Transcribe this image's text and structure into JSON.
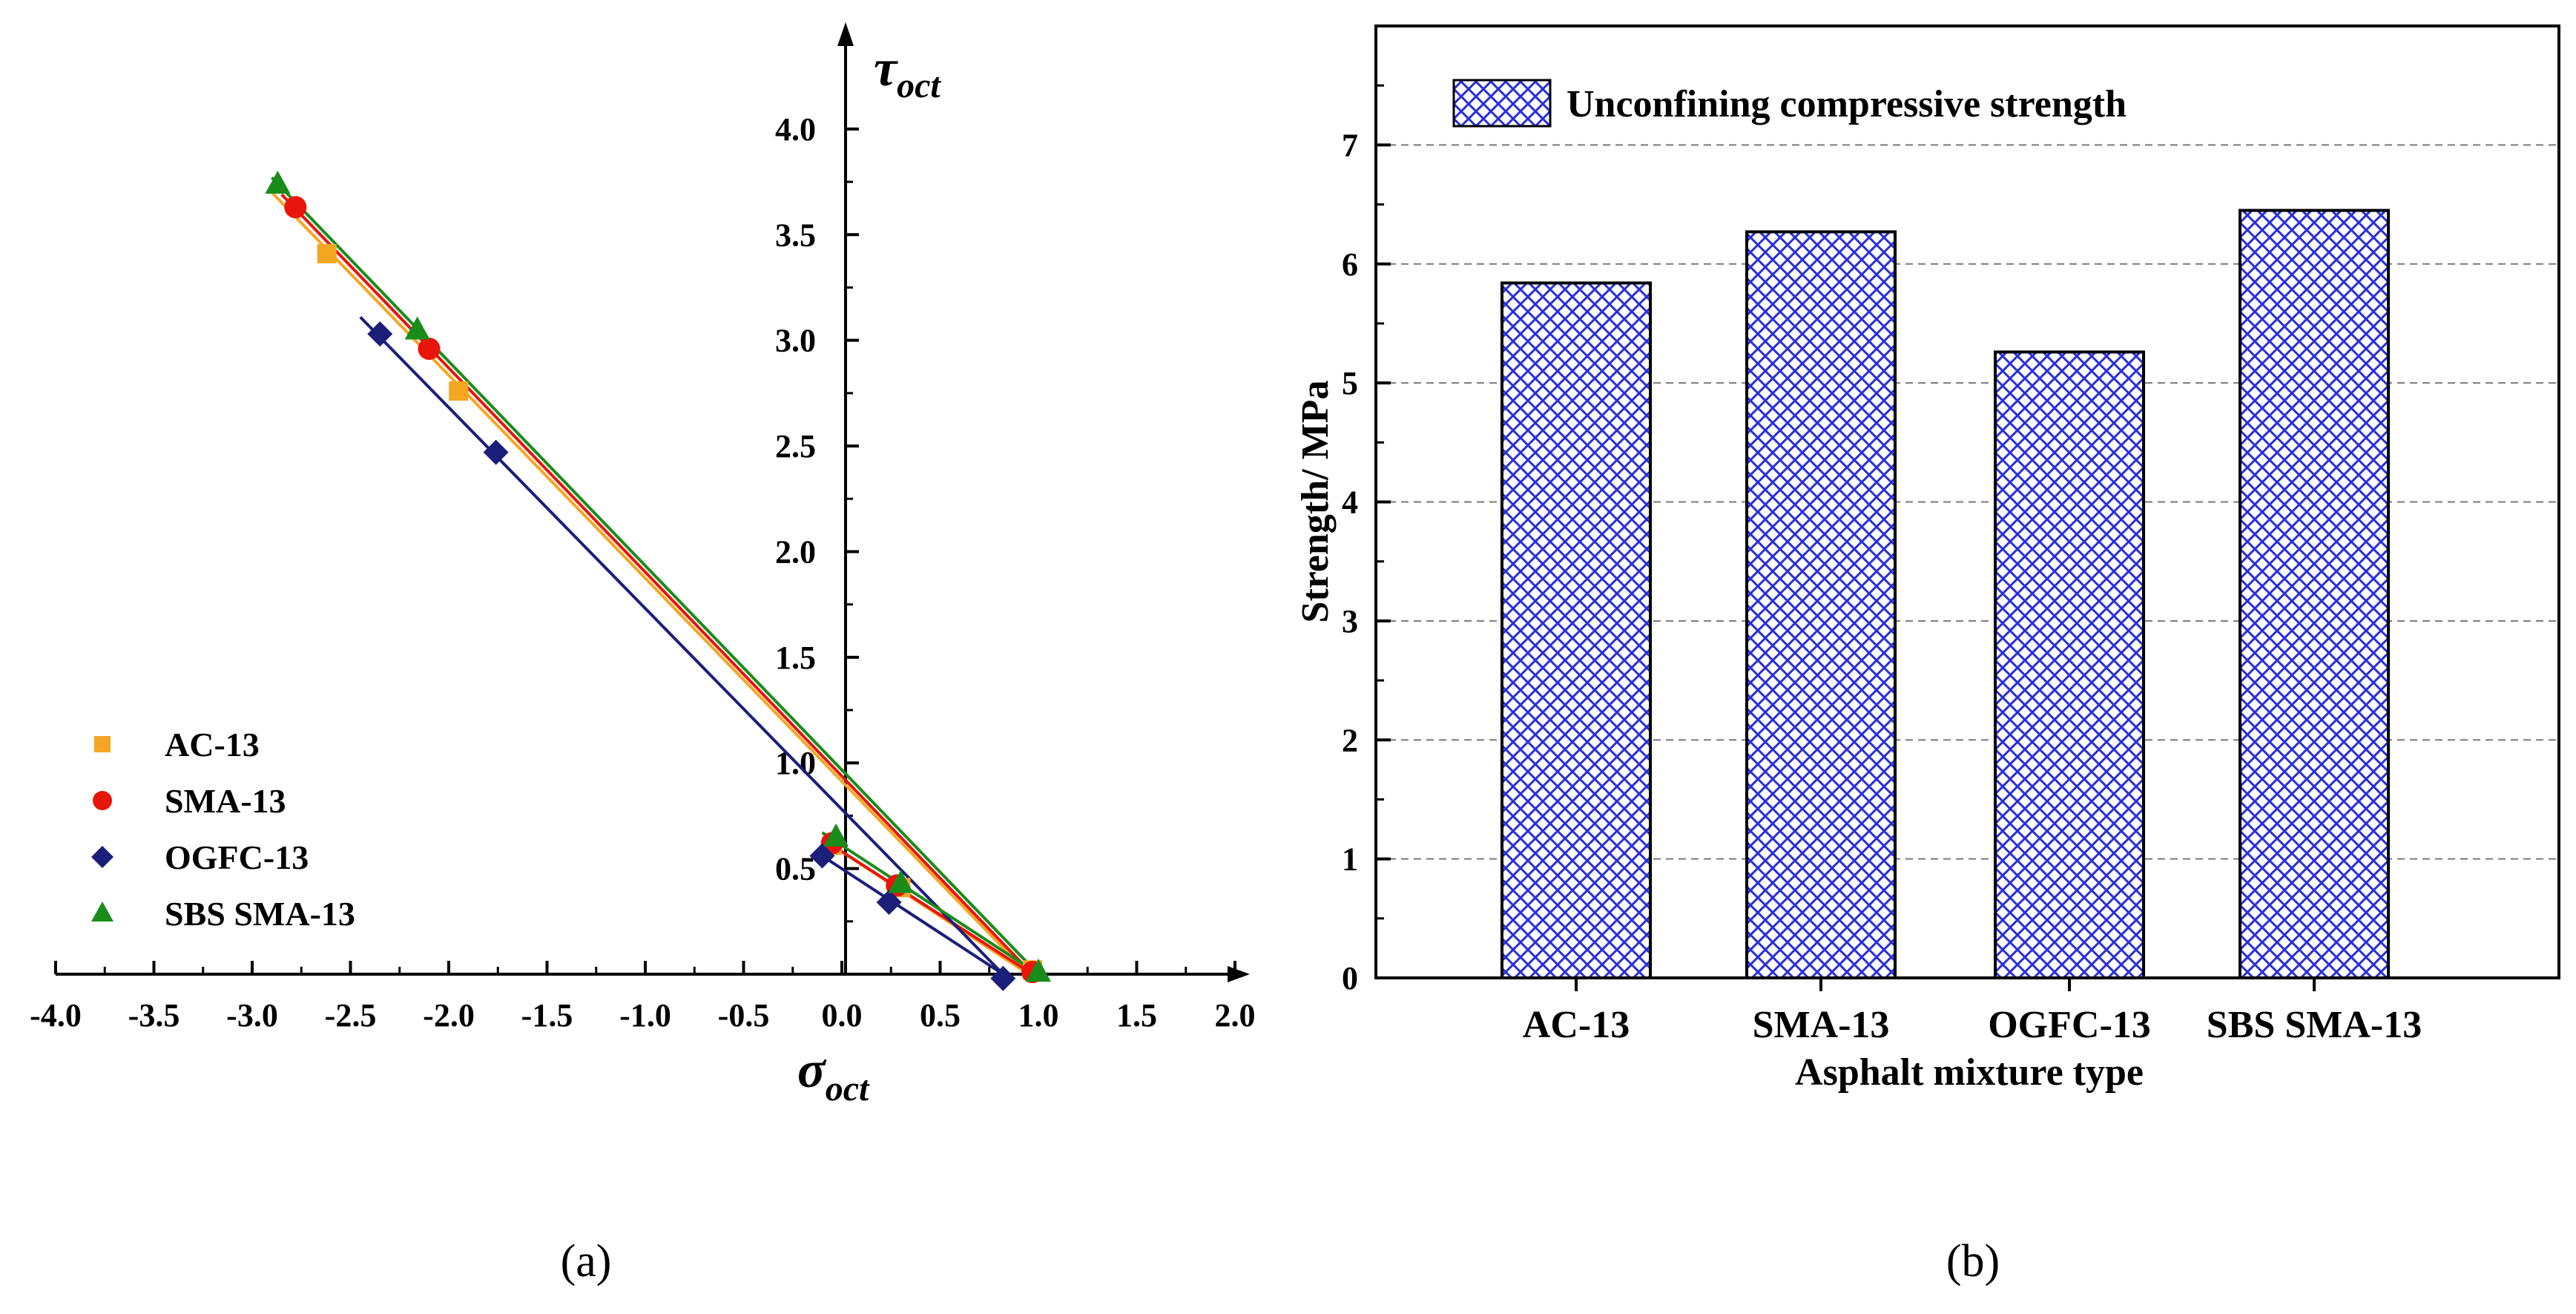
{
  "chart_data": [
    {
      "type": "scatter",
      "panel": "(a)",
      "xlabel": "σ",
      "xlabel_sub": "oct",
      "ylabel": "τ",
      "ylabel_sub": "oct",
      "xlim": [
        -4.0,
        2.0
      ],
      "ylim": [
        0,
        4.4
      ],
      "xticks": [
        "-4.0",
        "-3.5",
        "-3.0",
        "-2.5",
        "-2.0",
        "-1.5",
        "-1.0",
        "-0.5",
        "0.0",
        "0.5",
        "1.0",
        "1.5",
        "2.0"
      ],
      "yticks": [
        "0.5",
        "1.0",
        "1.5",
        "2.0",
        "2.5",
        "3.0",
        "3.5",
        "4.0"
      ],
      "legend_position": "bottom-left",
      "series": [
        {
          "name": "AC-13",
          "color": "#F5A623",
          "marker": "square",
          "points": [
            [
              -2.62,
              3.41
            ],
            [
              -1.95,
              2.76
            ],
            [
              -0.05,
              0.61
            ],
            [
              0.3,
              0.41
            ],
            [
              0.97,
              0.02
            ]
          ],
          "fit_lines": [
            [
              [
                -2.9,
                3.7
              ],
              [
                0.95,
                0.0
              ]
            ],
            [
              [
                -0.1,
                0.64
              ],
              [
                0.95,
                0.0
              ]
            ]
          ]
        },
        {
          "name": "SMA-13",
          "color": "#E8150B",
          "marker": "circle",
          "points": [
            [
              -2.78,
              3.63
            ],
            [
              -2.1,
              2.96
            ],
            [
              -0.05,
              0.62
            ],
            [
              0.28,
              0.42
            ],
            [
              0.97,
              0.01
            ]
          ],
          "fit_lines": [
            [
              [
                -2.85,
                3.69
              ],
              [
                0.97,
                0.0
              ]
            ],
            [
              [
                -0.1,
                0.64
              ],
              [
                0.97,
                0.0
              ]
            ]
          ]
        },
        {
          "name": "OGFC-13",
          "color": "#1B1F7A",
          "marker": "diamond",
          "points": [
            [
              -2.35,
              3.03
            ],
            [
              -1.76,
              2.47
            ],
            [
              -0.1,
              0.56
            ],
            [
              0.24,
              0.34
            ],
            [
              0.82,
              -0.02
            ]
          ],
          "fit_lines": [
            [
              [
                -2.45,
                3.11
              ],
              [
                0.82,
                0.0
              ]
            ],
            [
              [
                -0.1,
                0.56
              ],
              [
                0.82,
                0.0
              ]
            ]
          ]
        },
        {
          "name": "SBS SMA-13",
          "color": "#1A8C1A",
          "marker": "triangle",
          "points": [
            [
              -2.87,
              3.74
            ],
            [
              -2.16,
              3.05
            ],
            [
              -0.03,
              0.65
            ],
            [
              0.3,
              0.43
            ],
            [
              1.0,
              0.01
            ]
          ],
          "fit_lines": [
            [
              [
                -2.9,
                3.77
              ],
              [
                1.0,
                0.0
              ]
            ],
            [
              [
                -0.1,
                0.67
              ],
              [
                1.0,
                0.0
              ]
            ]
          ]
        }
      ]
    },
    {
      "type": "bar",
      "panel": "(b)",
      "categories": [
        "AC-13",
        "SMA-13",
        "OGFC-13",
        "SBS SMA-13"
      ],
      "values": [
        5.84,
        6.27,
        5.26,
        6.45
      ],
      "series_name": "Unconfining compressive strength",
      "xlabel": "Asphalt mixture type",
      "ylabel": "Strength/ MPa",
      "ylim": [
        0,
        8.0
      ],
      "yticks": [
        "0",
        "1",
        "2",
        "3",
        "4",
        "5",
        "6",
        "7"
      ],
      "grid": true,
      "legend_position": "top-left",
      "fill_color": "#2A2FD9"
    }
  ]
}
